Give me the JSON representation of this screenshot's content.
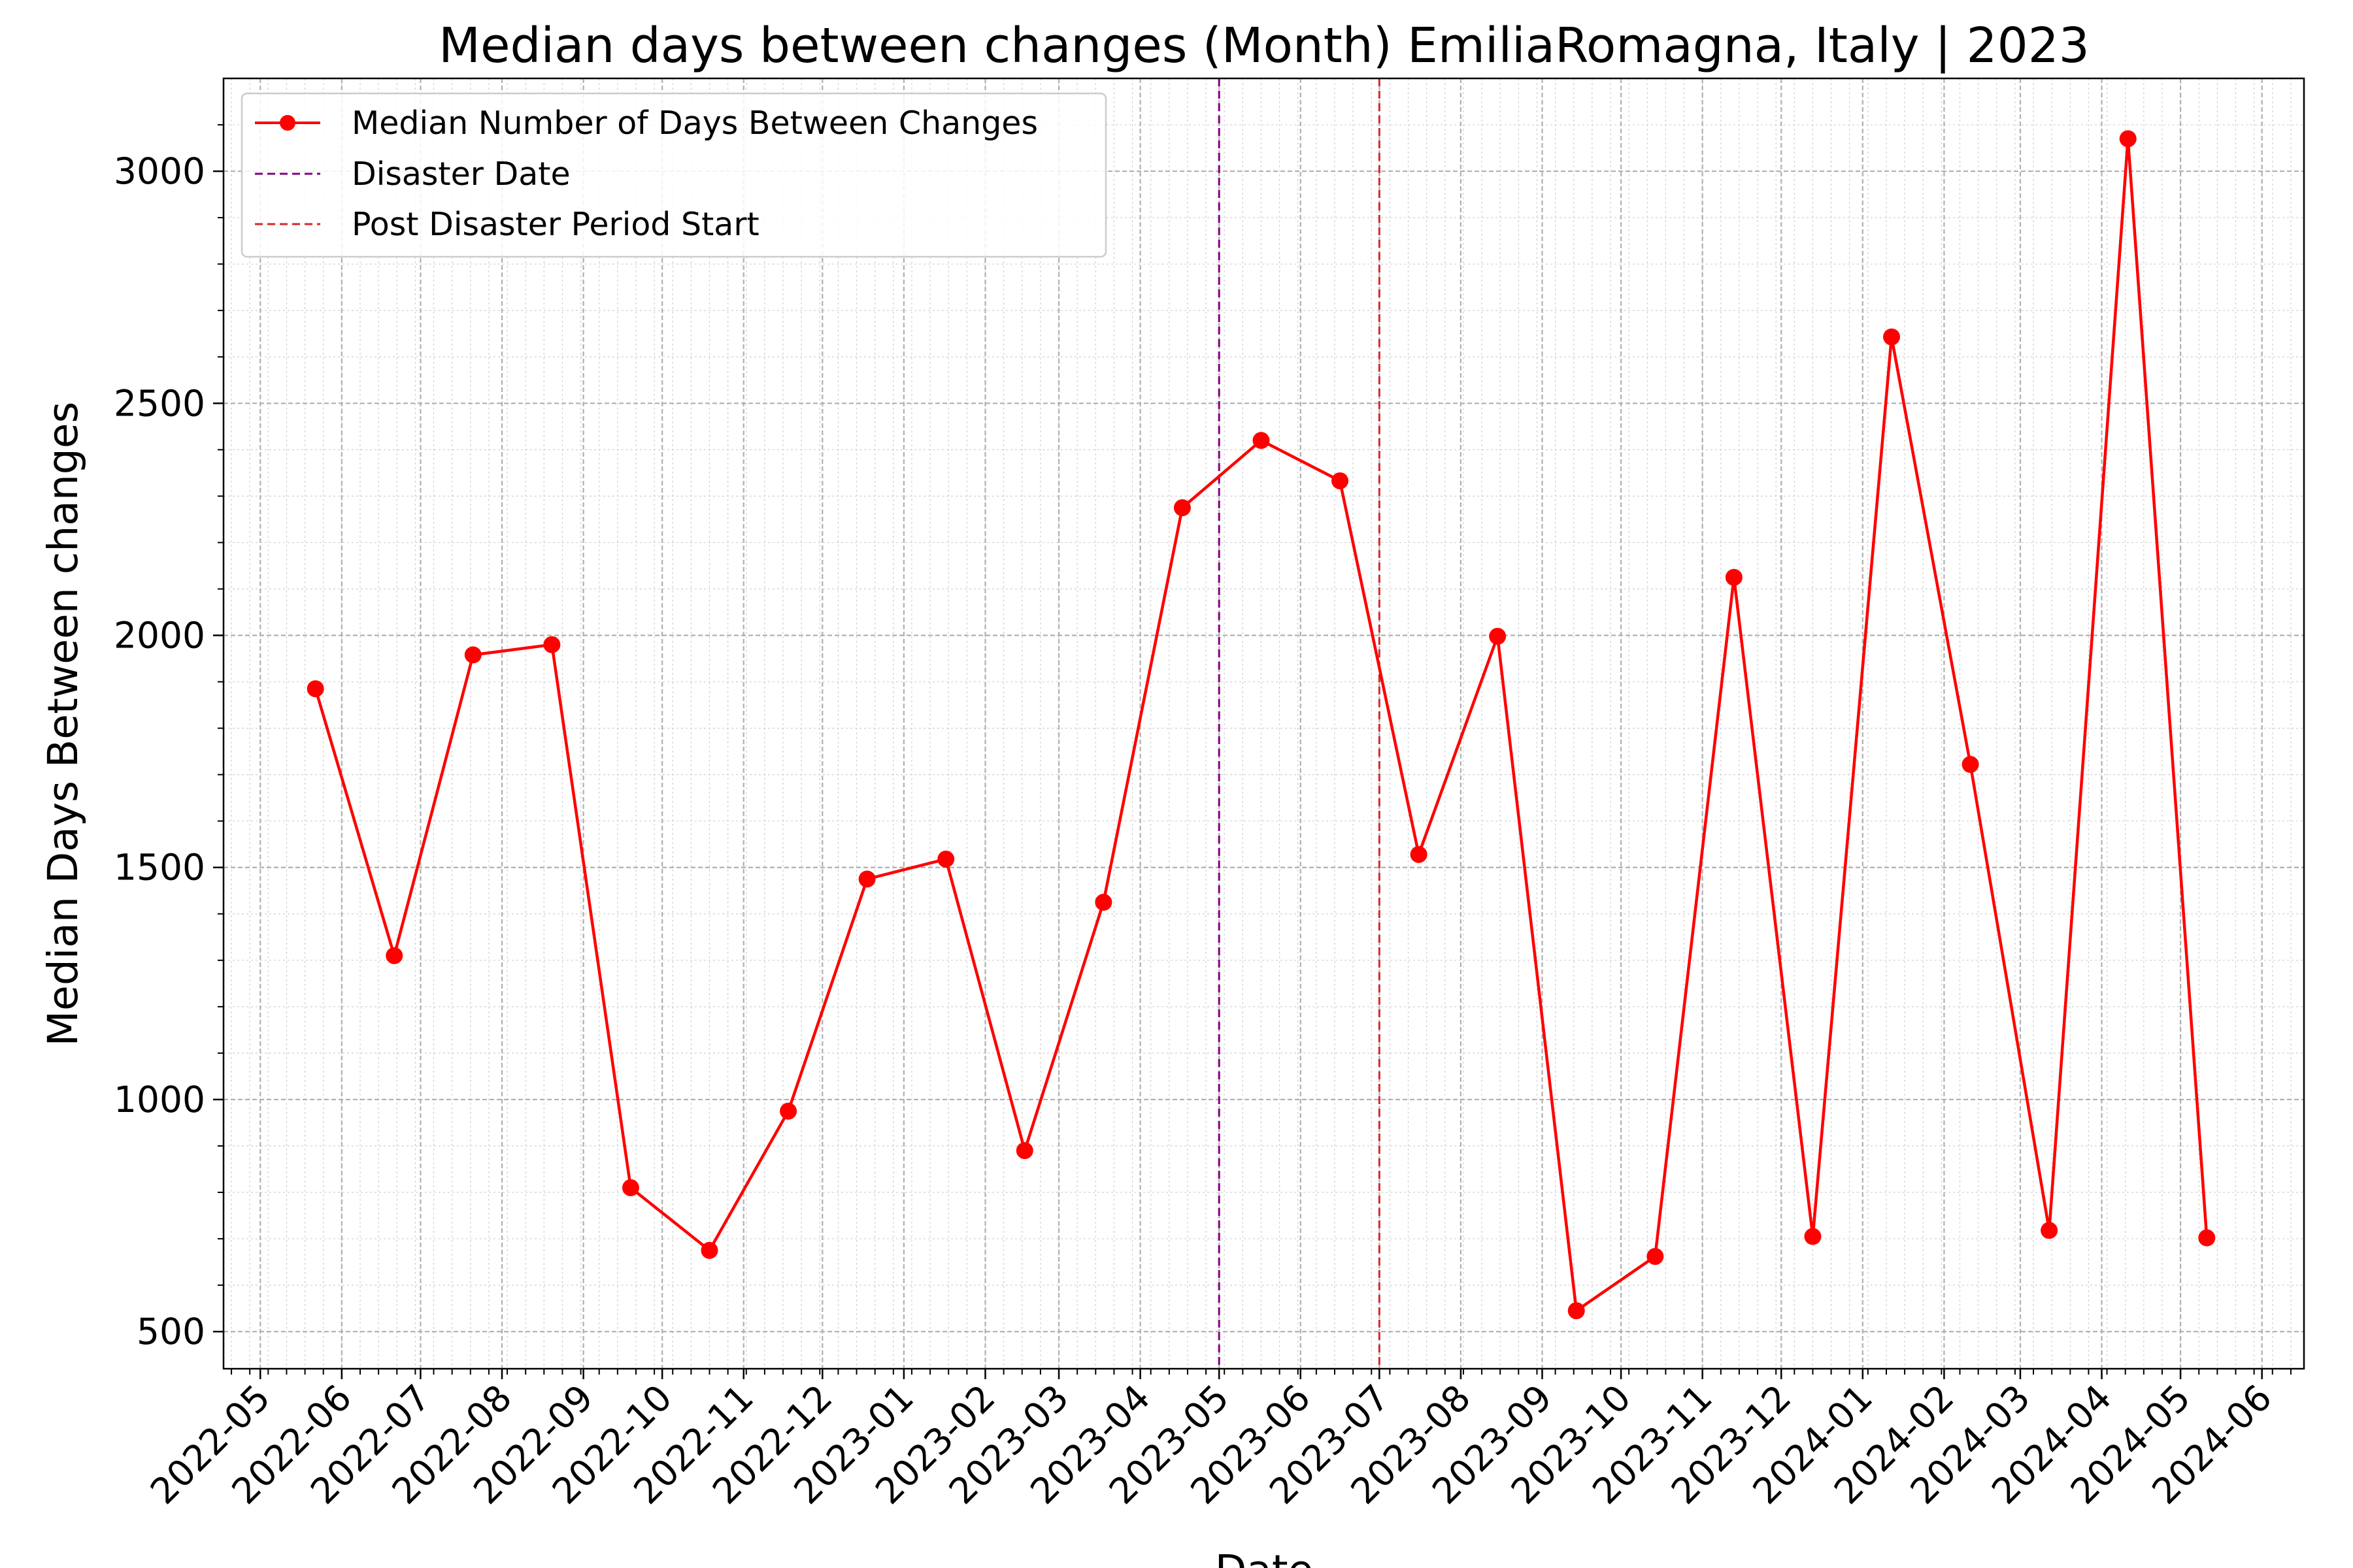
{
  "chart_data": {
    "type": "line",
    "title": "Median days between changes (Month) EmiliaRomagna, Italy | 2023",
    "xlabel": "Date",
    "ylabel": "Median Days Between changes",
    "ylim": [
      420,
      3200
    ],
    "y_ticks": [
      500,
      1000,
      1500,
      2000,
      2500,
      3000
    ],
    "xlim": [
      "2022-04-17",
      "2024-06-17"
    ],
    "x_ticks": [
      "2022-05",
      "2022-06",
      "2022-07",
      "2022-08",
      "2022-09",
      "2022-10",
      "2022-11",
      "2022-12",
      "2023-01",
      "2023-02",
      "2023-03",
      "2023-04",
      "2023-05",
      "2023-06",
      "2023-07",
      "2023-08",
      "2023-09",
      "2023-10",
      "2023-11",
      "2023-12",
      "2024-01",
      "2024-02",
      "2024-03",
      "2024-04",
      "2024-05",
      "2024-06"
    ],
    "grid": true,
    "legend_position": "top-left",
    "series": [
      {
        "name": "Median Number of Days Between Changes",
        "color": "#ff0000",
        "marker": "circle",
        "x": [
          "2022-05-22",
          "2022-06-21",
          "2022-07-21",
          "2022-08-20",
          "2022-09-19",
          "2022-10-19",
          "2022-11-18",
          "2022-12-18",
          "2023-01-17",
          "2023-02-16",
          "2023-03-18",
          "2023-04-17",
          "2023-05-17",
          "2023-06-16",
          "2023-07-16",
          "2023-08-15",
          "2023-09-14",
          "2023-10-14",
          "2023-11-13",
          "2023-12-13",
          "2024-01-12",
          "2024-02-11",
          "2024-03-12",
          "2024-04-11",
          "2024-05-11"
        ],
        "y": [
          1885,
          1310,
          1958,
          1980,
          810,
          675,
          975,
          1475,
          1518,
          890,
          1425,
          2275,
          2420,
          2333,
          1528,
          1998,
          545,
          662,
          2125,
          705,
          2643,
          1722,
          718,
          3070,
          702
        ]
      }
    ],
    "vlines": [
      {
        "name": "Disaster Date",
        "x": "2023-05-01",
        "color": "#800080",
        "style": "dashed"
      },
      {
        "name": "Post Disaster Period Start",
        "x": "2023-07-01",
        "color": "#d62728",
        "style": "dashed"
      }
    ]
  }
}
